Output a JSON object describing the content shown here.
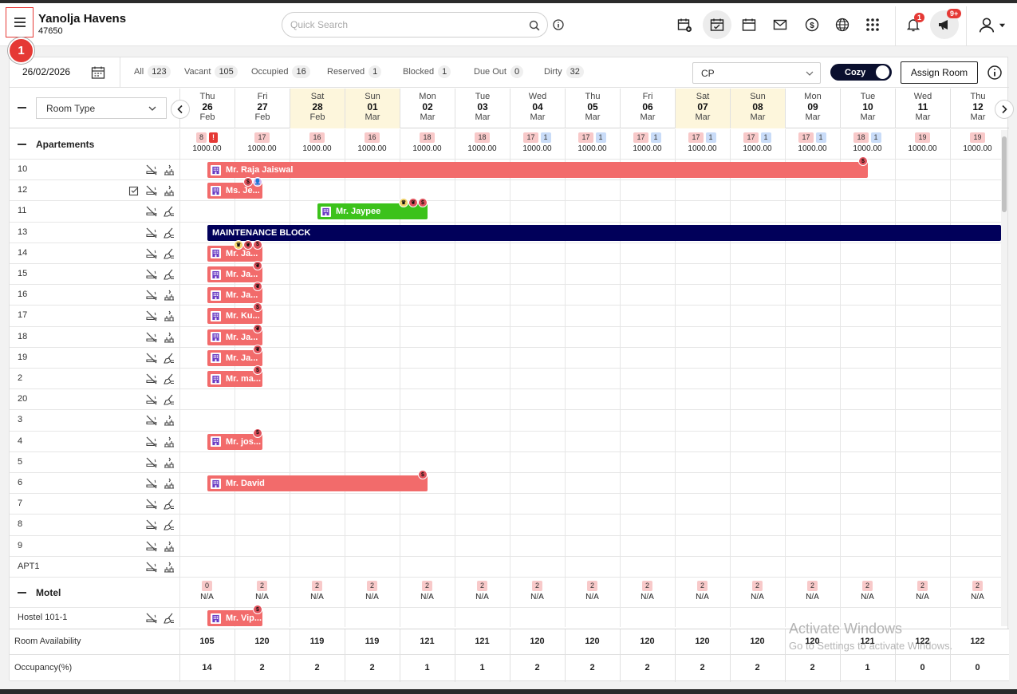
{
  "hotel": {
    "name": "Yanolja Havens",
    "id": "47650"
  },
  "search": {
    "placeholder": "Quick Search"
  },
  "badges": {
    "menu_step": "1",
    "notifications": "1",
    "announcements": "9+"
  },
  "filters": {
    "date": "26/02/2026",
    "stats": [
      {
        "label": "All",
        "count": "123"
      },
      {
        "label": "Vacant",
        "count": "105"
      },
      {
        "label": "Occupied",
        "count": "16"
      },
      {
        "label": "Reserved",
        "count": "1"
      },
      {
        "label": "Blocked",
        "count": "1"
      },
      {
        "label": "Due Out",
        "count": "0"
      },
      {
        "label": "Dirty",
        "count": "32"
      }
    ],
    "rate_plan": "CP",
    "view_toggle": "Cozy",
    "assign_button": "Assign Room"
  },
  "room_type_select": "Room Type",
  "days": [
    {
      "dn": "Thu",
      "dd": "26",
      "dm": "Feb",
      "weekend": false
    },
    {
      "dn": "Fri",
      "dd": "27",
      "dm": "Feb",
      "weekend": false
    },
    {
      "dn": "Sat",
      "dd": "28",
      "dm": "Feb",
      "weekend": true
    },
    {
      "dn": "Sun",
      "dd": "01",
      "dm": "Mar",
      "weekend": true
    },
    {
      "dn": "Mon",
      "dd": "02",
      "dm": "Mar",
      "weekend": false
    },
    {
      "dn": "Tue",
      "dd": "03",
      "dm": "Mar",
      "weekend": false
    },
    {
      "dn": "Wed",
      "dd": "04",
      "dm": "Mar",
      "weekend": false
    },
    {
      "dn": "Thu",
      "dd": "05",
      "dm": "Mar",
      "weekend": false
    },
    {
      "dn": "Fri",
      "dd": "06",
      "dm": "Mar",
      "weekend": false
    },
    {
      "dn": "Sat",
      "dd": "07",
      "dm": "Mar",
      "weekend": true
    },
    {
      "dn": "Sun",
      "dd": "08",
      "dm": "Mar",
      "weekend": true
    },
    {
      "dn": "Mon",
      "dd": "09",
      "dm": "Mar",
      "weekend": false
    },
    {
      "dn": "Tue",
      "dd": "10",
      "dm": "Mar",
      "weekend": false
    },
    {
      "dn": "Wed",
      "dd": "11",
      "dm": "Mar",
      "weekend": false
    },
    {
      "dn": "Thu",
      "dd": "12",
      "dm": "Mar",
      "weekend": false
    }
  ],
  "groups": [
    {
      "name": "Apartements",
      "counts": [
        {
          "a": "8",
          "b": "!",
          "bstyle": "red",
          "rate": "1000.00"
        },
        {
          "a": "17",
          "rate": "1000.00"
        },
        {
          "a": "16",
          "rate": "1000.00"
        },
        {
          "a": "16",
          "rate": "1000.00"
        },
        {
          "a": "18",
          "rate": "1000.00"
        },
        {
          "a": "18",
          "rate": "1000.00"
        },
        {
          "a": "17",
          "b": "1",
          "bstyle": "blue",
          "rate": "1000.00"
        },
        {
          "a": "17",
          "b": "1",
          "bstyle": "blue",
          "rate": "1000.00"
        },
        {
          "a": "17",
          "b": "1",
          "bstyle": "blue",
          "rate": "1000.00"
        },
        {
          "a": "17",
          "b": "1",
          "bstyle": "blue",
          "rate": "1000.00"
        },
        {
          "a": "17",
          "b": "1",
          "bstyle": "blue",
          "rate": "1000.00"
        },
        {
          "a": "17",
          "b": "1",
          "bstyle": "blue",
          "rate": "1000.00"
        },
        {
          "a": "18",
          "b": "1",
          "bstyle": "blue",
          "rate": "1000.00"
        },
        {
          "a": "19",
          "rate": "1000.00"
        },
        {
          "a": "19",
          "rate": "1000.00"
        }
      ],
      "rooms": [
        {
          "name": "10",
          "clean": true
        },
        {
          "name": "12",
          "clean": true,
          "inspected": true
        },
        {
          "name": "11",
          "clean": false
        },
        {
          "name": "13",
          "clean": false
        },
        {
          "name": "14",
          "clean": false
        },
        {
          "name": "15",
          "clean": false
        },
        {
          "name": "16",
          "clean": true
        },
        {
          "name": "17",
          "clean": true
        },
        {
          "name": "18",
          "clean": true
        },
        {
          "name": "19",
          "clean": false
        },
        {
          "name": "2",
          "clean": false
        },
        {
          "name": "20",
          "clean": false
        },
        {
          "name": "3",
          "clean": true
        },
        {
          "name": "4",
          "clean": true
        },
        {
          "name": "5",
          "clean": true
        },
        {
          "name": "6",
          "clean": true
        },
        {
          "name": "7",
          "clean": false
        },
        {
          "name": "8",
          "clean": false
        },
        {
          "name": "9",
          "clean": true
        },
        {
          "name": "APT1",
          "clean": true
        }
      ]
    },
    {
      "name": "Motel",
      "counts": [
        {
          "a": "0",
          "rate": "N/A"
        },
        {
          "a": "2",
          "rate": "N/A"
        },
        {
          "a": "2",
          "rate": "N/A"
        },
        {
          "a": "2",
          "rate": "N/A"
        },
        {
          "a": "2",
          "rate": "N/A"
        },
        {
          "a": "2",
          "rate": "N/A"
        },
        {
          "a": "2",
          "rate": "N/A"
        },
        {
          "a": "2",
          "rate": "N/A"
        },
        {
          "a": "2",
          "rate": "N/A"
        },
        {
          "a": "2",
          "rate": "N/A"
        },
        {
          "a": "2",
          "rate": "N/A"
        },
        {
          "a": "2",
          "rate": "N/A"
        },
        {
          "a": "2",
          "rate": "N/A"
        },
        {
          "a": "2",
          "rate": "N/A"
        },
        {
          "a": "2",
          "rate": "N/A"
        }
      ],
      "rooms": [
        {
          "name": "Hostel 101-1",
          "clean": false
        }
      ]
    }
  ],
  "bookings": [
    {
      "room": "10",
      "name": "Mr. Raja Jaiswal",
      "start_day": 0,
      "nights": 12,
      "color": "red",
      "icon": true,
      "dots": [
        {
          "end_offset": 1,
          "type": "dollar"
        }
      ]
    },
    {
      "room": "12",
      "name": "Ms. Je...",
      "start_day": 0,
      "nights": 1,
      "color": "red",
      "icon": true,
      "dots": [
        {
          "end_offset": 2,
          "type": "dollar"
        },
        {
          "end_offset": 1,
          "type": "guest"
        }
      ]
    },
    {
      "room": "11",
      "name": "Mr. Jaypee",
      "start_day": 2,
      "nights": 2,
      "color": "green",
      "icon": true,
      "dots": [
        {
          "end_offset": 3,
          "type": "crown"
        },
        {
          "end_offset": 2,
          "type": "pet"
        },
        {
          "end_offset": 1,
          "type": "dollar"
        }
      ]
    },
    {
      "room": "13",
      "name": "MAINTENANCE BLOCK",
      "start_day": 0,
      "nights": 15,
      "color": "navy",
      "icon": false,
      "dots": []
    },
    {
      "room": "14",
      "name": "Mr. Ja...",
      "start_day": 0,
      "nights": 1,
      "color": "red",
      "icon": true,
      "dots": [
        {
          "end_offset": 3,
          "type": "crown"
        },
        {
          "end_offset": 2,
          "type": "pet"
        },
        {
          "end_offset": 1,
          "type": "dollar"
        }
      ]
    },
    {
      "room": "15",
      "name": "Mr. Ja...",
      "start_day": 0,
      "nights": 1,
      "color": "red",
      "icon": true,
      "dots": [
        {
          "end_offset": 1,
          "type": "pet"
        }
      ]
    },
    {
      "room": "16",
      "name": "Mr. Ja...",
      "start_day": 0,
      "nights": 1,
      "color": "red",
      "icon": true,
      "dots": [
        {
          "end_offset": 1,
          "type": "pet"
        }
      ]
    },
    {
      "room": "17",
      "name": "Mr. Ku...",
      "start_day": 0,
      "nights": 1,
      "color": "red",
      "icon": true,
      "dots": [
        {
          "end_offset": 1,
          "type": "dollar"
        }
      ]
    },
    {
      "room": "18",
      "name": "Mr. Ja...",
      "start_day": 0,
      "nights": 1,
      "color": "red",
      "icon": true,
      "dots": [
        {
          "end_offset": 1,
          "type": "pet"
        }
      ]
    },
    {
      "room": "19",
      "name": "Mr. Ja...",
      "start_day": 0,
      "nights": 1,
      "color": "red",
      "icon": true,
      "dots": [
        {
          "end_offset": 1,
          "type": "pet"
        }
      ]
    },
    {
      "room": "2",
      "name": "Mr. ma...",
      "start_day": 0,
      "nights": 1,
      "color": "red",
      "icon": true,
      "dots": [
        {
          "end_offset": 1,
          "type": "dollar"
        }
      ]
    },
    {
      "room": "4",
      "name": "Mr. jos...",
      "start_day": 0,
      "nights": 1,
      "color": "red",
      "icon": true,
      "dots": [
        {
          "end_offset": 1,
          "type": "dollar"
        }
      ]
    },
    {
      "room": "6",
      "name": "Mr. David",
      "start_day": 0,
      "nights": 4,
      "color": "red",
      "icon": true,
      "dots": [
        {
          "end_offset": 1,
          "type": "dollar"
        }
      ]
    },
    {
      "room": "Hostel 101-1",
      "name": "Mr. Vip...",
      "start_day": 0,
      "nights": 1,
      "color": "red",
      "icon": true,
      "dots": [
        {
          "end_offset": 1,
          "type": "dollar"
        }
      ]
    }
  ],
  "footer": {
    "availability_label": "Room Availability",
    "availability": [
      "105",
      "120",
      "119",
      "119",
      "121",
      "121",
      "120",
      "120",
      "120",
      "120",
      "120",
      "120",
      "121",
      "122",
      "122"
    ],
    "occupancy_label": "Occupancy(%)",
    "occupancy": [
      "14",
      "2",
      "2",
      "2",
      "1",
      "1",
      "2",
      "2",
      "2",
      "2",
      "2",
      "2",
      "1",
      "0",
      "0"
    ]
  },
  "watermark": {
    "line1": "Activate Windows",
    "line2": "Go to Settings to activate Windows."
  },
  "colors": {
    "booking_red": "#f26b6b",
    "booking_green": "#3cc21b",
    "block_navy": "#01005a",
    "weekend_bg": "#fdf6dc",
    "accent_red": "#e53935"
  }
}
